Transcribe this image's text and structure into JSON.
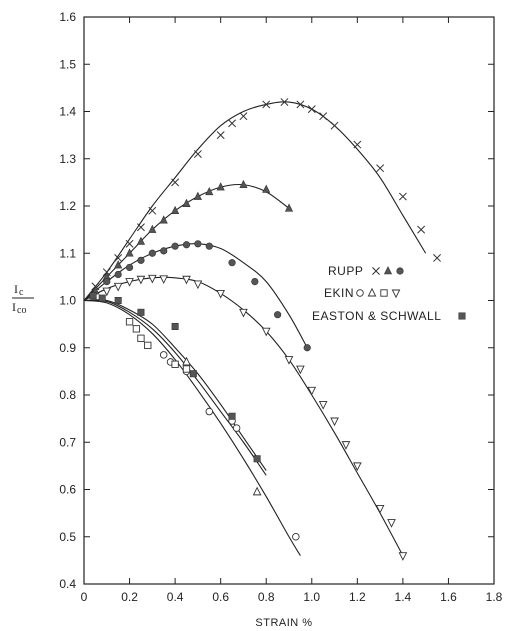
{
  "chart_data": {
    "type": "scatter",
    "xlabel": "STRAIN %",
    "ylabel_numerator": "I",
    "ylabel_numerator_sub": "c",
    "ylabel_denominator": "I",
    "ylabel_denominator_sub": "co",
    "xlim": [
      0,
      1.8
    ],
    "ylim": [
      0.4,
      1.6
    ],
    "x_ticks": [
      "0",
      "0.2",
      "0.4",
      "0.6",
      "0.8",
      "1.0",
      "1.2",
      "1.4",
      "1.6",
      "1.8"
    ],
    "y_ticks": [
      "0.4",
      "0.5",
      "0.6",
      "0.7",
      "0.8",
      "0.9",
      "1.0",
      "1.1",
      "1.2",
      "1.3",
      "1.4",
      "1.5",
      "1.6"
    ],
    "legend": [
      {
        "label": "RUPP",
        "markers": [
          "x",
          "filled-triangle",
          "filled-circle"
        ]
      },
      {
        "label": "EKIN",
        "markers": [
          "open-circle",
          "open-triangle",
          "open-square",
          "open-inverted-triangle"
        ]
      },
      {
        "label": "EASTON & SCHWALL",
        "markers": [
          "filled-square"
        ]
      }
    ],
    "curves": [
      {
        "x": [
          0,
          0.1,
          0.2,
          0.3,
          0.4,
          0.5,
          0.6,
          0.7,
          0.8,
          0.9,
          1.0,
          1.1,
          1.2,
          1.3,
          1.4,
          1.5
        ],
        "y": [
          1.0,
          1.06,
          1.13,
          1.2,
          1.26,
          1.32,
          1.37,
          1.4,
          1.415,
          1.42,
          1.405,
          1.37,
          1.32,
          1.26,
          1.18,
          1.1
        ]
      },
      {
        "x": [
          0,
          0.1,
          0.2,
          0.3,
          0.4,
          0.5,
          0.6,
          0.7,
          0.8,
          0.9
        ],
        "y": [
          1.0,
          1.05,
          1.1,
          1.15,
          1.19,
          1.22,
          1.24,
          1.245,
          1.23,
          1.195
        ]
      },
      {
        "x": [
          0,
          0.1,
          0.2,
          0.3,
          0.4,
          0.5,
          0.6,
          0.7,
          0.8,
          0.9,
          0.98
        ],
        "y": [
          1.0,
          1.04,
          1.075,
          1.1,
          1.115,
          1.12,
          1.11,
          1.08,
          1.04,
          0.97,
          0.9
        ]
      },
      {
        "x": [
          0,
          0.1,
          0.2,
          0.3,
          0.4,
          0.5,
          0.6,
          0.7,
          0.8,
          0.9,
          1.0,
          1.1,
          1.2,
          1.3,
          1.4
        ],
        "y": [
          1.0,
          1.025,
          1.04,
          1.048,
          1.048,
          1.04,
          1.015,
          0.98,
          0.935,
          0.875,
          0.8,
          0.72,
          0.635,
          0.55,
          0.46
        ]
      },
      {
        "x": [
          0,
          0.1,
          0.2,
          0.3,
          0.4,
          0.5,
          0.6,
          0.7,
          0.8
        ],
        "y": [
          1.0,
          1.0,
          0.98,
          0.95,
          0.9,
          0.845,
          0.78,
          0.71,
          0.64
        ]
      },
      {
        "x": [
          0,
          0.1,
          0.2,
          0.3,
          0.4,
          0.5,
          0.6,
          0.7,
          0.8
        ],
        "y": [
          1.0,
          0.998,
          0.975,
          0.94,
          0.89,
          0.83,
          0.765,
          0.7,
          0.63
        ]
      },
      {
        "x": [
          0,
          0.1,
          0.2,
          0.3,
          0.4,
          0.5,
          0.6,
          0.7,
          0.8,
          0.9,
          0.95
        ],
        "y": [
          1.0,
          0.995,
          0.97,
          0.93,
          0.875,
          0.81,
          0.74,
          0.665,
          0.585,
          0.5,
          0.46
        ]
      }
    ],
    "series": [
      {
        "marker": "x",
        "points": [
          [
            0.05,
            1.03
          ],
          [
            0.1,
            1.06
          ],
          [
            0.15,
            1.09
          ],
          [
            0.2,
            1.12
          ],
          [
            0.25,
            1.155
          ],
          [
            0.3,
            1.19
          ],
          [
            0.4,
            1.25
          ],
          [
            0.5,
            1.31
          ],
          [
            0.6,
            1.35
          ],
          [
            0.65,
            1.375
          ],
          [
            0.7,
            1.39
          ],
          [
            0.8,
            1.415
          ],
          [
            0.88,
            1.42
          ],
          [
            0.95,
            1.415
          ],
          [
            1.0,
            1.405
          ],
          [
            1.05,
            1.39
          ],
          [
            1.1,
            1.37
          ],
          [
            1.2,
            1.33
          ],
          [
            1.3,
            1.28
          ],
          [
            1.4,
            1.22
          ],
          [
            1.48,
            1.15
          ],
          [
            1.55,
            1.09
          ]
        ]
      },
      {
        "marker": "filled-triangle",
        "points": [
          [
            0.05,
            1.02
          ],
          [
            0.1,
            1.05
          ],
          [
            0.15,
            1.075
          ],
          [
            0.2,
            1.1
          ],
          [
            0.25,
            1.125
          ],
          [
            0.3,
            1.15
          ],
          [
            0.35,
            1.17
          ],
          [
            0.4,
            1.19
          ],
          [
            0.45,
            1.205
          ],
          [
            0.5,
            1.22
          ],
          [
            0.55,
            1.23
          ],
          [
            0.6,
            1.24
          ],
          [
            0.7,
            1.245
          ],
          [
            0.8,
            1.235
          ],
          [
            0.9,
            1.195
          ]
        ]
      },
      {
        "marker": "filled-circle",
        "points": [
          [
            0.1,
            1.04
          ],
          [
            0.15,
            1.055
          ],
          [
            0.2,
            1.07
          ],
          [
            0.25,
            1.085
          ],
          [
            0.3,
            1.1
          ],
          [
            0.35,
            1.105
          ],
          [
            0.4,
            1.115
          ],
          [
            0.45,
            1.118
          ],
          [
            0.5,
            1.12
          ],
          [
            0.55,
            1.115
          ],
          [
            0.65,
            1.08
          ],
          [
            0.75,
            1.04
          ],
          [
            0.85,
            0.97
          ],
          [
            0.98,
            0.9
          ]
        ]
      },
      {
        "marker": "open-inverted-triangle",
        "points": [
          [
            0.1,
            1.02
          ],
          [
            0.15,
            1.03
          ],
          [
            0.2,
            1.04
          ],
          [
            0.25,
            1.045
          ],
          [
            0.3,
            1.047
          ],
          [
            0.35,
            1.046
          ],
          [
            0.45,
            1.045
          ],
          [
            0.5,
            1.035
          ],
          [
            0.6,
            1.015
          ],
          [
            0.7,
            0.975
          ],
          [
            0.8,
            0.935
          ],
          [
            0.9,
            0.875
          ],
          [
            0.95,
            0.855
          ],
          [
            1.0,
            0.81
          ],
          [
            1.05,
            0.78
          ],
          [
            1.1,
            0.745
          ],
          [
            1.15,
            0.695
          ],
          [
            1.2,
            0.65
          ],
          [
            1.3,
            0.56
          ],
          [
            1.35,
            0.53
          ],
          [
            1.4,
            0.46
          ]
        ]
      },
      {
        "marker": "open-circle",
        "points": [
          [
            0.35,
            0.885
          ],
          [
            0.38,
            0.87
          ],
          [
            0.45,
            0.85
          ],
          [
            0.55,
            0.765
          ],
          [
            0.65,
            0.745
          ],
          [
            0.67,
            0.73
          ],
          [
            0.93,
            0.5
          ]
        ]
      },
      {
        "marker": "open-square",
        "points": [
          [
            0.2,
            0.955
          ],
          [
            0.23,
            0.94
          ],
          [
            0.25,
            0.92
          ],
          [
            0.28,
            0.905
          ],
          [
            0.4,
            0.865
          ],
          [
            0.45,
            0.855
          ]
        ]
      },
      {
        "marker": "open-triangle",
        "points": [
          [
            0.45,
            0.87
          ],
          [
            0.76,
            0.595
          ]
        ]
      },
      {
        "marker": "filled-square",
        "points": [
          [
            0.04,
            1.01
          ],
          [
            0.08,
            1.005
          ],
          [
            0.15,
            1.0
          ],
          [
            0.25,
            0.975
          ],
          [
            0.4,
            0.945
          ],
          [
            0.48,
            0.845
          ],
          [
            0.65,
            0.755
          ],
          [
            0.76,
            0.665
          ]
        ]
      }
    ]
  }
}
